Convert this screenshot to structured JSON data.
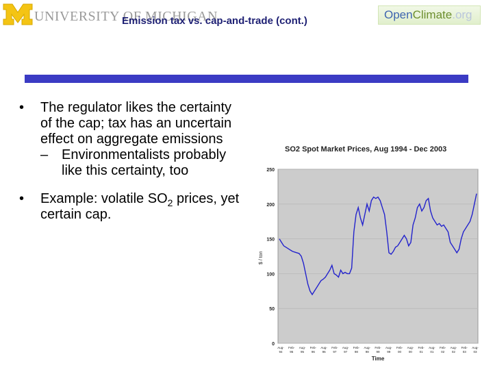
{
  "header": {
    "university_name": "UNIVERSITY OF MICHIGAN",
    "openclimate": {
      "open": "Open",
      "climate": "Climate",
      "org": ".org"
    }
  },
  "slide": {
    "title": "Emission tax vs. cap-and-trade (cont.)",
    "bullets": [
      {
        "text": "The regulator likes the certainty of the cap; tax has an uncertain effect on aggregate emissions",
        "subbullets": [
          "Environmentalists probably like this certainty, too"
        ]
      },
      {
        "text_prefix": "Example: volatile SO",
        "text_subscript": "2",
        "text_suffix": " prices, yet certain cap."
      }
    ]
  },
  "colors": {
    "title": "#1d1f73",
    "title_bar": "#3b3bc4",
    "plot_bg": "#cccccc",
    "line": "#2222cc"
  },
  "chart_data": {
    "type": "line",
    "title": "SO2 Spot Market Prices, Aug 1994 - Dec 2003",
    "xlabel": "Time",
    "ylabel": "$ / ton",
    "ylim": [
      0,
      250
    ],
    "yticks": [
      0,
      50,
      100,
      150,
      200,
      250
    ],
    "grid": true,
    "legend": "none",
    "x_tick_labels": [
      [
        "Aug-",
        "94"
      ],
      [
        "Feb-",
        "95"
      ],
      [
        "Aug-",
        "95"
      ],
      [
        "Feb-",
        "96"
      ],
      [
        "Aug-",
        "96"
      ],
      [
        "Feb-",
        "97"
      ],
      [
        "Aug-",
        "97"
      ],
      [
        "Feb-",
        "98"
      ],
      [
        "Aug-",
        "98"
      ],
      [
        "Feb-",
        "99"
      ],
      [
        "Aug-",
        "99"
      ],
      [
        "Feb-",
        "00"
      ],
      [
        "Aug-",
        "00"
      ],
      [
        "Feb-",
        "01"
      ],
      [
        "Aug-",
        "01"
      ],
      [
        "Feb-",
        "02"
      ],
      [
        "Aug-",
        "02"
      ],
      [
        "Feb-",
        "03"
      ],
      [
        "Aug-",
        "03"
      ]
    ],
    "series": [
      {
        "values": [
          150,
          145,
          140,
          138,
          136,
          134,
          132,
          131,
          130,
          129,
          125,
          115,
          100,
          85,
          75,
          70,
          75,
          80,
          85,
          90,
          92,
          95,
          100,
          105,
          112,
          100,
          98,
          95,
          105,
          100,
          102,
          100,
          100,
          108,
          160,
          185,
          195,
          180,
          170,
          185,
          200,
          190,
          205,
          210,
          208,
          210,
          205,
          195,
          185,
          160,
          130,
          128,
          132,
          138,
          140,
          145,
          150,
          155,
          150,
          140,
          145,
          170,
          180,
          195,
          200,
          190,
          195,
          205,
          208,
          190,
          180,
          175,
          170,
          172,
          168,
          170,
          165,
          160,
          145,
          140,
          135,
          130,
          135,
          150,
          160,
          165,
          170,
          175,
          185,
          200,
          215
        ]
      }
    ]
  }
}
